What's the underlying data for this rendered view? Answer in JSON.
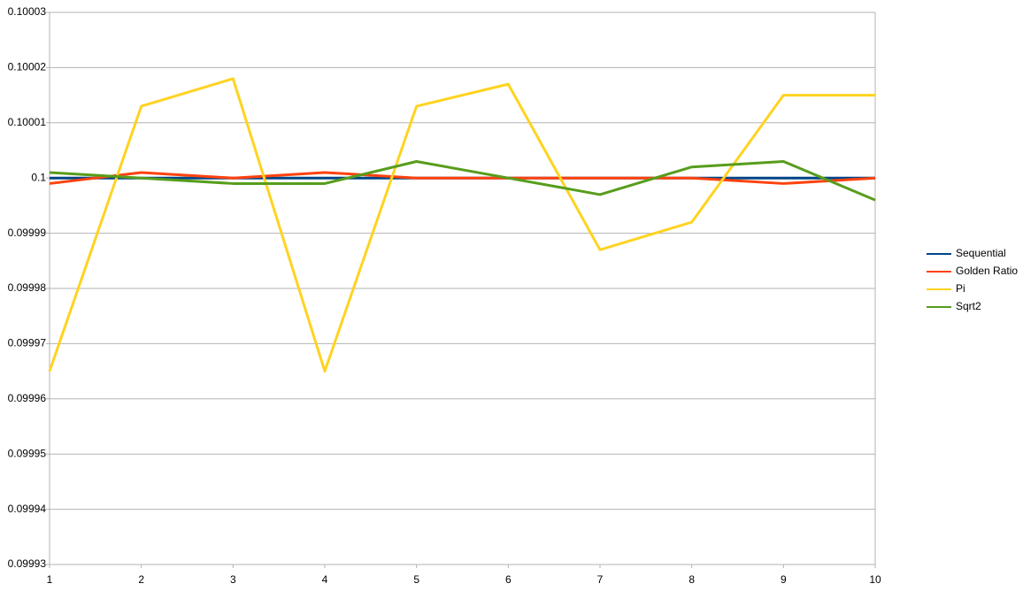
{
  "chart_data": {
    "type": "line",
    "x": [
      1,
      2,
      3,
      4,
      5,
      6,
      7,
      8,
      9,
      10
    ],
    "xlim": [
      1,
      10
    ],
    "xticks": [
      1,
      2,
      3,
      4,
      5,
      6,
      7,
      8,
      9,
      10
    ],
    "ylim": [
      0.09993,
      0.10003
    ],
    "yticks": [
      0.09993,
      0.09994,
      0.09995,
      0.09996,
      0.09997,
      0.09998,
      0.09999,
      0.1,
      0.10001,
      0.10002,
      0.10003
    ],
    "grid": true,
    "legend": "right",
    "series": [
      {
        "name": "Sequential",
        "color": "#004586",
        "values": [
          0.1,
          0.1,
          0.1,
          0.1,
          0.1,
          0.1,
          0.1,
          0.1,
          0.1,
          0.1
        ]
      },
      {
        "name": "Golden Ratio",
        "color": "#ff420e",
        "values": [
          0.099999,
          0.100001,
          0.1,
          0.100001,
          0.1,
          0.1,
          0.1,
          0.1,
          0.099999,
          0.1
        ]
      },
      {
        "name": "Pi",
        "color": "#ffd320",
        "values": [
          0.099965,
          0.100013,
          0.100018,
          0.099965,
          0.100013,
          0.100017,
          0.099987,
          0.099992,
          0.100015,
          0.100015
        ]
      },
      {
        "name": "Sqrt2",
        "color": "#579d1c",
        "values": [
          0.100001,
          0.1,
          0.099999,
          0.099999,
          0.100003,
          0.1,
          0.099997,
          0.100002,
          0.100003,
          0.099996
        ]
      }
    ]
  }
}
